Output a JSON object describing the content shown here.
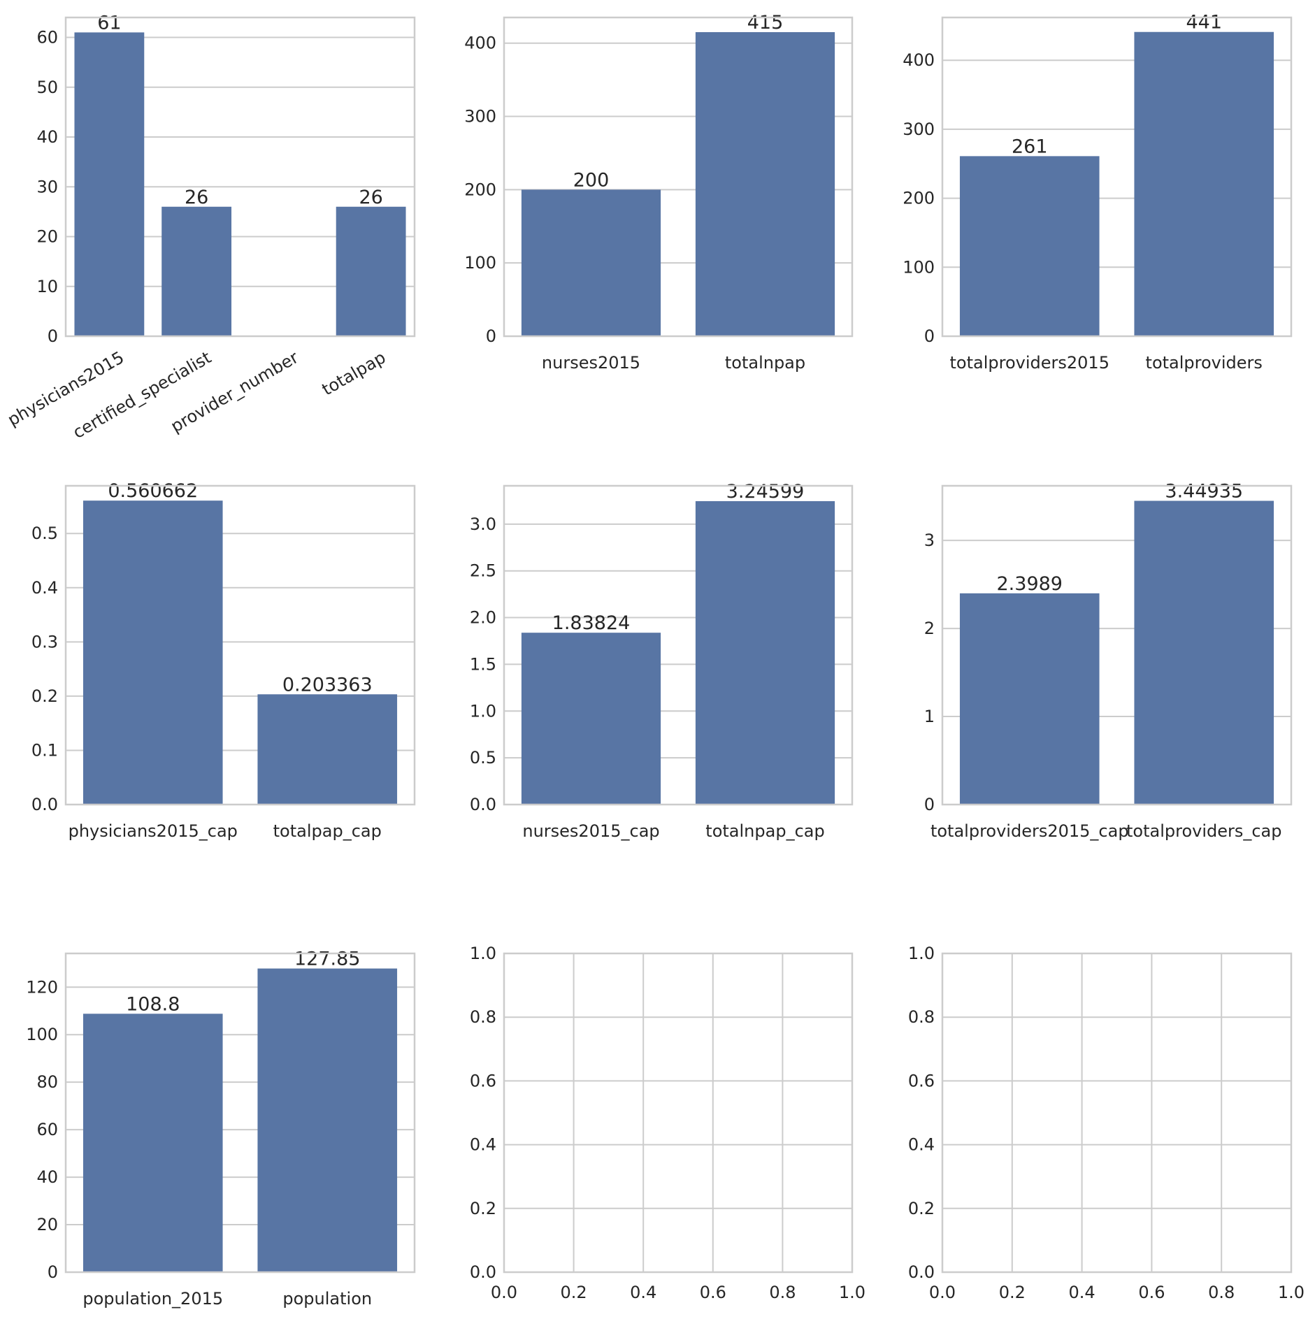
{
  "colors": {
    "bar": "#5875a4",
    "grid": "#cccccc",
    "frame": "#cccccc",
    "text": "#262626",
    "background": "#ffffff"
  },
  "layout_grid": "3x3",
  "chart_data": [
    {
      "type": "bar",
      "categories": [
        "physicians2015",
        "certified_specialist",
        "provider_number",
        "totalpap"
      ],
      "values": [
        61,
        26,
        null,
        26
      ],
      "data_labels": [
        "61",
        "26",
        "",
        "26"
      ],
      "ylim": [
        0,
        64
      ],
      "yticks": [
        "0",
        "10",
        "20",
        "30",
        "40",
        "50",
        "60"
      ],
      "xticks_rotated": true,
      "grid": true
    },
    {
      "type": "bar",
      "categories": [
        "nurses2015",
        "totalnpap"
      ],
      "values": [
        200,
        415
      ],
      "data_labels": [
        "200",
        "415"
      ],
      "ylim": [
        0,
        435
      ],
      "yticks": [
        "0",
        "100",
        "200",
        "300",
        "400"
      ],
      "grid": true
    },
    {
      "type": "bar",
      "categories": [
        "totalproviders2015",
        "totalproviders"
      ],
      "values": [
        261,
        441
      ],
      "data_labels": [
        "261",
        "441"
      ],
      "ylim": [
        0,
        462
      ],
      "yticks": [
        "0",
        "100",
        "200",
        "300",
        "400"
      ],
      "grid": true
    },
    {
      "type": "bar",
      "categories": [
        "physicians2015_cap",
        "totalpap_cap"
      ],
      "values": [
        0.560662,
        0.203363
      ],
      "data_labels": [
        "0.560662",
        "0.203363"
      ],
      "ylim": [
        0,
        0.588
      ],
      "yticks": [
        "0.0",
        "0.1",
        "0.2",
        "0.3",
        "0.4",
        "0.5"
      ],
      "grid": true
    },
    {
      "type": "bar",
      "categories": [
        "nurses2015_cap",
        "totalnpap_cap"
      ],
      "values": [
        1.83824,
        3.24599
      ],
      "data_labels": [
        "1.83824",
        "3.24599"
      ],
      "ylim": [
        0,
        3.41
      ],
      "yticks": [
        "0.0",
        "0.5",
        "1.0",
        "1.5",
        "2.0",
        "2.5",
        "3.0"
      ],
      "grid": true
    },
    {
      "type": "bar",
      "categories": [
        "totalproviders2015_cap",
        "totalproviders_cap"
      ],
      "values": [
        2.3989,
        3.44935
      ],
      "data_labels": [
        "2.3989",
        "3.44935"
      ],
      "ylim": [
        0,
        3.62
      ],
      "yticks": [
        "0",
        "1",
        "2",
        "3"
      ],
      "grid": true
    },
    {
      "type": "bar",
      "categories": [
        "population_2015",
        "population"
      ],
      "values": [
        108.8,
        127.85
      ],
      "data_labels": [
        "108.8",
        "127.85"
      ],
      "ylim": [
        0,
        134.2
      ],
      "yticks": [
        "0",
        "20",
        "40",
        "60",
        "80",
        "100",
        "120"
      ],
      "grid": true
    },
    {
      "type": "bar",
      "categories": [],
      "values": [],
      "empty_axes": true,
      "xlim": [
        0,
        1
      ],
      "ylim": [
        0,
        1
      ],
      "xticks": [
        "0.0",
        "0.2",
        "0.4",
        "0.6",
        "0.8",
        "1.0"
      ],
      "yticks": [
        "0.0",
        "0.2",
        "0.4",
        "0.6",
        "0.8",
        "1.0"
      ],
      "grid": true
    },
    {
      "type": "bar",
      "categories": [],
      "values": [],
      "empty_axes": true,
      "xlim": [
        0,
        1
      ],
      "ylim": [
        0,
        1
      ],
      "xticks": [
        "0.0",
        "0.2",
        "0.4",
        "0.6",
        "0.8",
        "1.0"
      ],
      "yticks": [
        "0.0",
        "0.2",
        "0.4",
        "0.6",
        "0.8",
        "1.0"
      ],
      "grid": true
    }
  ]
}
